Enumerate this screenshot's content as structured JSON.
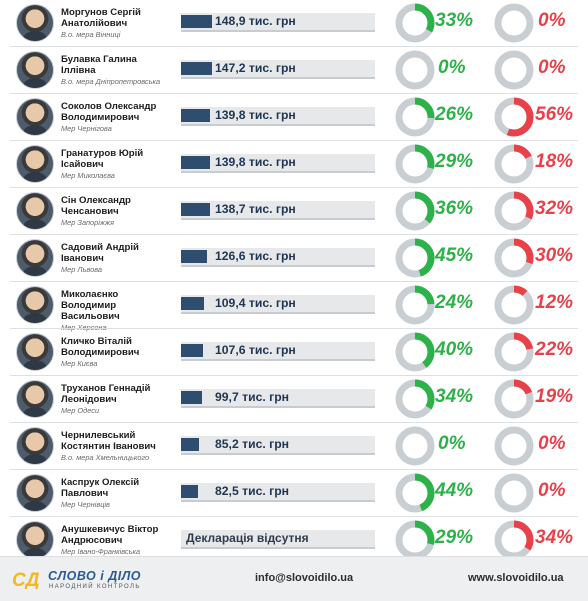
{
  "chart_data": {
    "type": "table",
    "columns": [
      "",
      "",
      "",
      ""
    ],
    "rows": [
      {
        "name": "Моргунов Сергій Анатолійович",
        "title": "В.о. мера Вінниці",
        "declared": 148.9,
        "income_label": "148,9 тис. грн",
        "pct_green": 33,
        "pct_green_label": "33%",
        "pct_red": 0,
        "pct_red_label": "0%"
      },
      {
        "name": "Булавка Галина Іллівна",
        "title": "В.о. мера Дніпропетровська",
        "declared": 147.2,
        "income_label": "147,2 тис. грн",
        "pct_green": 0,
        "pct_green_label": "0%",
        "pct_red": 0,
        "pct_red_label": "0%"
      },
      {
        "name": "Соколов Олександр Володимирович",
        "title": "Мер Чернігова",
        "declared": 139.8,
        "income_label": "139,8 тис. грн",
        "pct_green": 26,
        "pct_green_label": "26%",
        "pct_red": 56,
        "pct_red_label": "56%"
      },
      {
        "name": "Гранатуров Юрій Ісайович",
        "title": "Мер Миколаєва",
        "declared": 139.8,
        "income_label": "139,8 тис. грн",
        "pct_green": 29,
        "pct_green_label": "29%",
        "pct_red": 18,
        "pct_red_label": "18%"
      },
      {
        "name": "Сін Олександр Ченсанович",
        "title": "Мер Запоріжжя",
        "declared": 138.7,
        "income_label": "138,7 тис. грн",
        "pct_green": 36,
        "pct_green_label": "36%",
        "pct_red": 32,
        "pct_red_label": "32%"
      },
      {
        "name": "Садовий Андрій Іванович",
        "title": "Мер Львова",
        "declared": 126.6,
        "income_label": "126,6 тис. грн",
        "pct_green": 45,
        "pct_green_label": "45%",
        "pct_red": 30,
        "pct_red_label": "30%"
      },
      {
        "name": "Миколаєнко Володимир Васильович",
        "title": "Мер Херсона",
        "declared": 109.4,
        "income_label": "109,4 тис. грн",
        "pct_green": 24,
        "pct_green_label": "24%",
        "pct_red": 12,
        "pct_red_label": "12%"
      },
      {
        "name": "Кличко Віталій Володимирович",
        "title": "Мер Києва",
        "declared": 107.6,
        "income_label": "107,6 тис. грн",
        "pct_green": 40,
        "pct_green_label": "40%",
        "pct_red": 22,
        "pct_red_label": "22%"
      },
      {
        "name": "Труханов Геннадій Леонідович",
        "title": "Мер Одеси",
        "declared": 99.7,
        "income_label": "99,7 тис. грн",
        "pct_green": 34,
        "pct_green_label": "34%",
        "pct_red": 19,
        "pct_red_label": "19%"
      },
      {
        "name": "Чернилевський Костянтин Іванович",
        "title": "В.о. мера Хмельницького",
        "declared": 85.2,
        "income_label": "85,2 тис. грн",
        "pct_green": 0,
        "pct_green_label": "0%",
        "pct_red": 0,
        "pct_red_label": "0%"
      },
      {
        "name": "Каспрук Олексій Павлович",
        "title": "Мер Чернівців",
        "declared": 82.5,
        "income_label": "82,5 тис. грн",
        "pct_green": 44,
        "pct_green_label": "44%",
        "pct_red": 0,
        "pct_red_label": "0%"
      },
      {
        "name": "Анушкевичус Віктор Андрюсович",
        "title": "Мер Івано-Франківська",
        "declared": null,
        "income_label": "Декларація відсутня",
        "pct_green": 29,
        "pct_green_label": "29%",
        "pct_red": 34,
        "pct_red_label": "34%"
      }
    ],
    "bar_max": 148.9,
    "colors": {
      "bar": "#2f4d6e",
      "track": "#e6e8ea",
      "green": "#2db24a",
      "red": "#e84149",
      "ring": "#c9ced3"
    }
  },
  "footer": {
    "logo_mark": "СД",
    "logo_name": "СЛОВО і ДІЛО",
    "logo_subtitle": "НАРОДНИЙ КОНТРОЛЬ",
    "email": "info@slovoidilo.ua",
    "website": "www.slovoidilo.ua"
  }
}
